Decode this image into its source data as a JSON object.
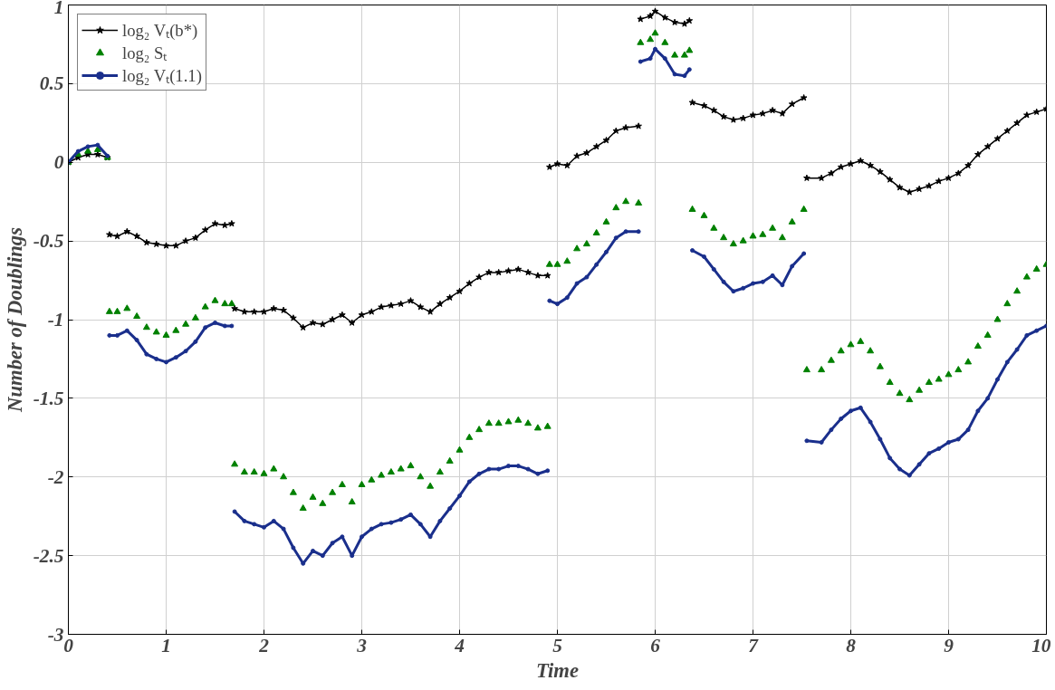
{
  "chart_data": {
    "type": "line",
    "xlabel": "Time",
    "ylabel": "Number of Doublings",
    "x": [
      0,
      0.1,
      0.2,
      0.3,
      0.4,
      0.41,
      0.42,
      0.5,
      0.6,
      0.7,
      0.8,
      0.9,
      1.0,
      1.1,
      1.2,
      1.3,
      1.4,
      1.5,
      1.6,
      1.67,
      1.68,
      1.7,
      1.8,
      1.9,
      2.0,
      2.1,
      2.2,
      2.3,
      2.4,
      2.5,
      2.6,
      2.7,
      2.8,
      2.9,
      3.0,
      3.1,
      3.2,
      3.3,
      3.4,
      3.5,
      3.6,
      3.7,
      3.8,
      3.9,
      4.0,
      4.1,
      4.2,
      4.3,
      4.4,
      4.5,
      4.6,
      4.7,
      4.8,
      4.9,
      4.91,
      4.92,
      5.0,
      5.1,
      5.2,
      5.3,
      5.4,
      5.5,
      5.6,
      5.7,
      5.83,
      5.84,
      5.85,
      5.95,
      6.0,
      6.1,
      6.2,
      6.3,
      6.35,
      6.37,
      6.38,
      6.5,
      6.6,
      6.7,
      6.8,
      6.9,
      7.0,
      7.1,
      7.2,
      7.3,
      7.4,
      7.52,
      7.53,
      7.55,
      7.7,
      7.8,
      7.9,
      8.0,
      8.1,
      8.2,
      8.3,
      8.4,
      8.5,
      8.6,
      8.7,
      8.8,
      8.9,
      9.0,
      9.1,
      9.2,
      9.3,
      9.4,
      9.5,
      9.6,
      9.7,
      9.8,
      9.9,
      10.0
    ],
    "series": [
      {
        "name": "log₂ Vₜ(b*)",
        "marker": "star",
        "color": "#000000",
        "values": [
          0,
          0.03,
          0.05,
          0.05,
          0.03,
          null,
          -0.46,
          -0.47,
          -0.44,
          -0.47,
          -0.51,
          -0.52,
          -0.53,
          -0.53,
          -0.5,
          -0.48,
          -0.43,
          -0.39,
          -0.4,
          -0.39,
          null,
          -0.93,
          -0.95,
          -0.95,
          -0.95,
          -0.93,
          -0.94,
          -0.99,
          -1.05,
          -1.02,
          -1.03,
          -1.0,
          -0.97,
          -1.02,
          -0.97,
          -0.95,
          -0.92,
          -0.91,
          -0.9,
          -0.88,
          -0.92,
          -0.95,
          -0.9,
          -0.86,
          -0.82,
          -0.77,
          -0.73,
          -0.7,
          -0.7,
          -0.69,
          -0.68,
          -0.7,
          -0.72,
          -0.72,
          null,
          -0.03,
          -0.01,
          -0.02,
          0.04,
          0.06,
          0.1,
          0.14,
          0.2,
          0.22,
          0.23,
          null,
          0.91,
          0.93,
          0.96,
          0.92,
          0.89,
          0.88,
          0.9,
          null,
          0.38,
          0.36,
          0.33,
          0.29,
          0.27,
          0.28,
          0.3,
          0.31,
          0.33,
          0.31,
          0.37,
          0.41,
          null,
          -0.1,
          -0.1,
          -0.07,
          -0.03,
          -0.01,
          0.01,
          -0.02,
          -0.06,
          -0.11,
          -0.16,
          -0.19,
          -0.17,
          -0.15,
          -0.12,
          -0.1,
          -0.07,
          -0.02,
          0.05,
          0.1,
          0.15,
          0.2,
          0.25,
          0.3,
          0.32,
          0.34
        ]
      },
      {
        "name": "log₂ Sₜ",
        "type": "scatter",
        "marker": "triangle",
        "color": "#008000",
        "values": [
          0,
          0.05,
          0.07,
          0.08,
          0.03,
          null,
          -0.95,
          -0.95,
          -0.93,
          -0.98,
          -1.05,
          -1.08,
          -1.1,
          -1.07,
          -1.03,
          -0.99,
          -0.92,
          -0.88,
          -0.9,
          -0.9,
          null,
          -1.92,
          -1.97,
          -1.97,
          -1.98,
          -1.95,
          -2.0,
          -2.1,
          -2.2,
          -2.13,
          -2.17,
          -2.1,
          -2.05,
          -2.16,
          -2.05,
          -2.02,
          -1.99,
          -1.97,
          -1.95,
          -1.93,
          -2.0,
          -2.06,
          -1.97,
          -1.9,
          -1.83,
          -1.75,
          -1.7,
          -1.66,
          -1.66,
          -1.65,
          -1.64,
          -1.66,
          -1.69,
          -1.68,
          null,
          -0.65,
          -0.65,
          -0.63,
          -0.55,
          -0.52,
          -0.45,
          -0.38,
          -0.29,
          -0.25,
          -0.26,
          null,
          0.76,
          0.78,
          0.82,
          0.76,
          0.68,
          0.68,
          0.71,
          null,
          -0.3,
          -0.34,
          -0.42,
          -0.48,
          -0.52,
          -0.5,
          -0.47,
          -0.46,
          -0.42,
          -0.48,
          -0.38,
          -0.3,
          null,
          -1.32,
          -1.32,
          -1.26,
          -1.2,
          -1.16,
          -1.14,
          -1.2,
          -1.3,
          -1.4,
          -1.47,
          -1.51,
          -1.45,
          -1.4,
          -1.38,
          -1.35,
          -1.32,
          -1.27,
          -1.17,
          -1.1,
          -1.0,
          -0.9,
          -0.82,
          -0.73,
          -0.68,
          -0.65
        ]
      },
      {
        "name": "log₂ Vₜ(1.1)",
        "marker": "circle",
        "color": "#1a2f8c",
        "values": [
          0,
          0.07,
          0.1,
          0.11,
          0.04,
          null,
          -1.1,
          -1.1,
          -1.07,
          -1.13,
          -1.22,
          -1.25,
          -1.27,
          -1.24,
          -1.2,
          -1.14,
          -1.05,
          -1.02,
          -1.04,
          -1.04,
          null,
          -2.22,
          -2.28,
          -2.3,
          -2.32,
          -2.28,
          -2.33,
          -2.45,
          -2.55,
          -2.47,
          -2.5,
          -2.42,
          -2.38,
          -2.5,
          -2.38,
          -2.33,
          -2.3,
          -2.29,
          -2.27,
          -2.24,
          -2.3,
          -2.38,
          -2.28,
          -2.2,
          -2.12,
          -2.03,
          -1.98,
          -1.95,
          -1.95,
          -1.93,
          -1.93,
          -1.95,
          -1.98,
          -1.96,
          null,
          -0.88,
          -0.9,
          -0.86,
          -0.77,
          -0.73,
          -0.65,
          -0.57,
          -0.48,
          -0.44,
          -0.44,
          null,
          0.64,
          0.66,
          0.72,
          0.66,
          0.56,
          0.55,
          0.59,
          null,
          -0.56,
          -0.6,
          -0.68,
          -0.76,
          -0.82,
          -0.8,
          -0.77,
          -0.76,
          -0.72,
          -0.78,
          -0.66,
          -0.58,
          null,
          -1.77,
          -1.78,
          -1.7,
          -1.63,
          -1.58,
          -1.56,
          -1.65,
          -1.76,
          -1.88,
          -1.95,
          -1.99,
          -1.92,
          -1.85,
          -1.82,
          -1.78,
          -1.76,
          -1.7,
          -1.58,
          -1.5,
          -1.38,
          -1.27,
          -1.19,
          -1.1,
          -1.07,
          -1.04
        ]
      }
    ],
    "xlim": [
      0,
      10
    ],
    "xticks": [
      0,
      1,
      2,
      3,
      4,
      5,
      6,
      7,
      8,
      9,
      10
    ],
    "ylim": [
      -3,
      1
    ],
    "yticks": [
      -3,
      -2.5,
      -2,
      -1.5,
      -1,
      -0.5,
      0,
      0.5,
      1
    ],
    "grid": true,
    "legend": "top left"
  }
}
